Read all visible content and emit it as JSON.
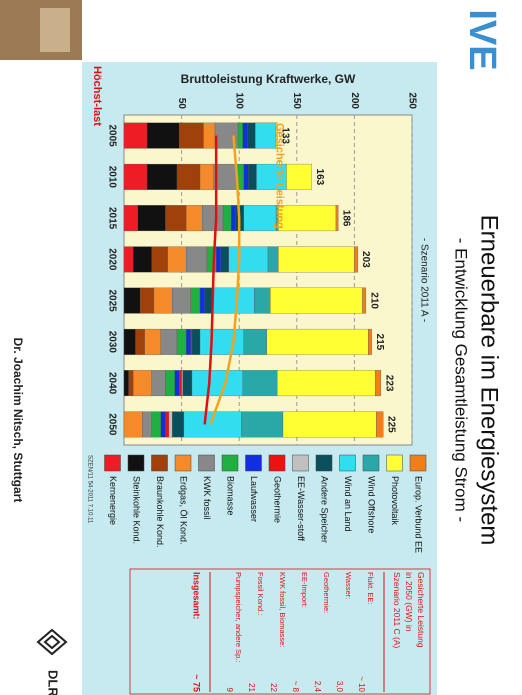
{
  "slide": {
    "logo": "IVE",
    "title": "Erneuerbare im Energiesystem",
    "subtitle": "- Entwicklung Gesamtleistung Strom -",
    "dlr": "DLR",
    "footer": "Dr. Joachim Nitsch, Stuttgart"
  },
  "chart_data": {
    "type": "bar",
    "stacked": true,
    "title": "- Szenario 2011 A -",
    "ylabel": "Bruttoleistung Kraftwerke, GW",
    "categories": [
      "2005",
      "2010",
      "2015",
      "2020",
      "2025",
      "2030",
      "2040",
      "2050"
    ],
    "totals": [
      133,
      163,
      186,
      203,
      210,
      215,
      223,
      225
    ],
    "series": [
      {
        "name": "Europ. Verbund EE",
        "color": "#f07f1a",
        "values": [
          0,
          0,
          2,
          3,
          3,
          3,
          5,
          6
        ]
      },
      {
        "name": "Photovoltaik",
        "color": "#ffff33",
        "values": [
          1,
          22,
          50,
          66,
          80,
          88,
          85,
          81
        ]
      },
      {
        "name": "Wind Offshore",
        "color": "#2aa8a8",
        "values": [
          0,
          0,
          2,
          9,
          14,
          20,
          30,
          36
        ]
      },
      {
        "name": "Wind an Land",
        "color": "#33ddf0",
        "values": [
          18,
          26,
          28,
          34,
          36,
          38,
          44,
          50
        ]
      },
      {
        "name": "Andere Speicher",
        "color": "#0b4f5c",
        "values": [
          7,
          7,
          7,
          7,
          7,
          7,
          8,
          10
        ]
      },
      {
        "name": "EE-Wasser-stoff",
        "color": "#c0c0c0",
        "values": [
          0,
          0,
          0,
          0,
          0,
          0,
          1,
          3
        ]
      },
      {
        "name": "Geothermie",
        "color": "#ee1111",
        "values": [
          0,
          0,
          0,
          0,
          0,
          1,
          2,
          3
        ]
      },
      {
        "name": "Laufwasser",
        "color": "#1030e0",
        "values": [
          4,
          4,
          4,
          4,
          4,
          4,
          4,
          4
        ]
      },
      {
        "name": "Biomasse",
        "color": "#20b040",
        "values": [
          4,
          6,
          7,
          8,
          8,
          8,
          8,
          8
        ]
      },
      {
        "name": "KWK fossil",
        "color": "#888888",
        "values": [
          20,
          20,
          18,
          18,
          16,
          14,
          12,
          8
        ]
      },
      {
        "name": "Erdgas, Öl Kond.",
        "color": "#f58a2a",
        "values": [
          10,
          12,
          14,
          16,
          16,
          14,
          16,
          16
        ]
      },
      {
        "name": "Braunkohle Kond.",
        "color": "#a0400a",
        "values": [
          21,
          20,
          18,
          14,
          12,
          8,
          4,
          0
        ]
      },
      {
        "name": "Steinkohle Kond.",
        "color": "#111111",
        "values": [
          28,
          26,
          24,
          16,
          14,
          10,
          4,
          0
        ]
      },
      {
        "name": "Kernenergie",
        "color": "#ee1c24",
        "values": [
          20,
          20,
          12,
          8,
          0,
          0,
          0,
          0
        ]
      }
    ],
    "lines": [
      {
        "name": "Gesicherte Leistung",
        "color": "#f5a020",
        "values": [
          95,
          98,
          100,
          100,
          98,
          95,
          88,
          75
        ]
      },
      {
        "name": "Höchst-last",
        "color": "#e01010",
        "values": [
          80,
          80,
          80,
          78,
          77,
          76,
          74,
          70
        ]
      }
    ],
    "ylim": [
      0,
      250
    ],
    "yticks": [
      50,
      100,
      150,
      200,
      250
    ],
    "grid": true,
    "source": "SZEN/11 54-2011 7.10.11"
  },
  "note": {
    "title_lines": [
      "Gesicherte Leistung",
      "in 2050 (GW) in",
      "Szenario 2011 C (A)"
    ],
    "rows": [
      [
        "Flukt. EE:",
        "~ 10"
      ],
      [
        "Wasser:",
        "3,0"
      ],
      [
        "Geothermie:",
        "2,4"
      ],
      [
        "EE-Import:",
        "~ 8"
      ],
      [
        "KWK fossil, Biomasse:",
        "22"
      ],
      [
        "Fossil Kond.:",
        "21"
      ],
      [
        "Pumpspeicher, andere Sp.:",
        "9"
      ]
    ],
    "total": [
      "Insgesamt:",
      "~ 75"
    ]
  }
}
